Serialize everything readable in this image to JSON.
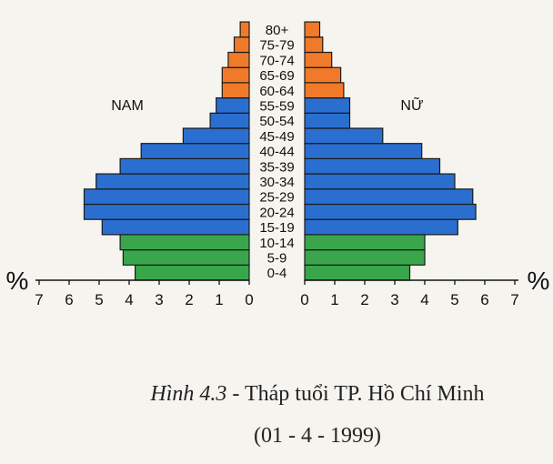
{
  "chart_data": {
    "type": "bar",
    "orientation": "horizontal-population-pyramid",
    "categories": [
      "0-4",
      "5-9",
      "10-14",
      "15-19",
      "20-24",
      "25-29",
      "30-34",
      "35-39",
      "40-44",
      "45-49",
      "50-54",
      "55-59",
      "60-64",
      "65-69",
      "70-74",
      "75-79",
      "80+"
    ],
    "series": [
      {
        "name": "NAM",
        "values": [
          3.8,
          4.2,
          4.3,
          4.9,
          5.5,
          5.5,
          5.1,
          4.3,
          3.6,
          2.2,
          1.3,
          1.1,
          0.9,
          0.9,
          0.7,
          0.5,
          0.3
        ]
      },
      {
        "name": "NỮ",
        "values": [
          3.5,
          4.0,
          4.0,
          5.1,
          5.7,
          5.6,
          5.0,
          4.5,
          3.9,
          2.6,
          1.5,
          1.5,
          1.3,
          1.2,
          0.9,
          0.6,
          0.5
        ]
      }
    ],
    "colors": {
      "young": "#3aa64c",
      "working": "#2a6fd0",
      "old": "#f07a2a"
    },
    "color_groups": {
      "young": [
        "0-4",
        "5-9",
        "10-14"
      ],
      "working": [
        "15-19",
        "20-24",
        "25-29",
        "30-34",
        "35-39",
        "40-44",
        "45-49",
        "50-54",
        "55-59"
      ],
      "old": [
        "60-64",
        "65-69",
        "70-74",
        "75-79",
        "80+"
      ]
    },
    "xlim": [
      0,
      7
    ],
    "xticks_left": [
      "7",
      "6",
      "5",
      "4",
      "3",
      "2",
      "1",
      "0"
    ],
    "xticks_right": [
      "0",
      "1",
      "2",
      "3",
      "4",
      "5",
      "6",
      "7"
    ],
    "axis_unit": "%",
    "grid": false
  },
  "caption": {
    "label": "Hình 4.3",
    "title": " - Tháp tuổi TP. Hồ Chí Minh",
    "date": "(01 - 4 - 1999)"
  }
}
